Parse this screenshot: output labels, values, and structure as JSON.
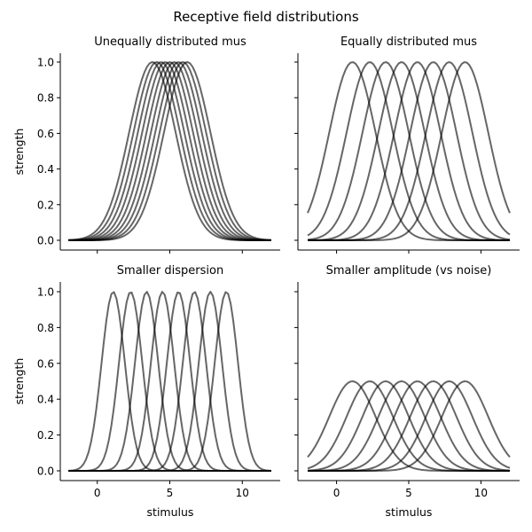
{
  "figure": {
    "title": "Receptive field distributions"
  },
  "chart_data": [
    {
      "type": "line",
      "title": "Unequally distributed mus",
      "xlabel": "",
      "ylabel": "strength",
      "xlim": [
        -2,
        12
      ],
      "ylim": [
        0,
        1
      ],
      "xticks": [
        0,
        5,
        10
      ],
      "yticks": [
        0.0,
        0.2,
        0.4,
        0.6,
        0.8,
        1.0
      ],
      "show_xticklabels": false,
      "show_yticklabels": true,
      "model": "gaussian",
      "mus": [
        3.8,
        4.1,
        4.4,
        4.7,
        5.0,
        5.3,
        5.6,
        5.9,
        6.2
      ],
      "sigma": 1.6,
      "amplitude": 1.0
    },
    {
      "type": "line",
      "title": "Equally distributed mus",
      "xlabel": "",
      "ylabel": "",
      "xlim": [
        -2,
        12
      ],
      "ylim": [
        0,
        1
      ],
      "xticks": [
        0,
        5,
        10
      ],
      "yticks": [
        0.0,
        0.2,
        0.4,
        0.6,
        0.8,
        1.0
      ],
      "show_xticklabels": false,
      "show_yticklabels": false,
      "model": "gaussian",
      "mus": [
        1.1,
        2.3,
        3.4,
        4.5,
        5.6,
        6.7,
        7.8,
        8.9
      ],
      "sigma": 1.6,
      "amplitude": 1.0
    },
    {
      "type": "line",
      "title": "Smaller dispersion",
      "xlabel": "stimulus",
      "ylabel": "strength",
      "xlim": [
        -2,
        12
      ],
      "ylim": [
        0,
        1
      ],
      "xticks": [
        0,
        5,
        10
      ],
      "yticks": [
        0.0,
        0.2,
        0.4,
        0.6,
        0.8,
        1.0
      ],
      "show_xticklabels": true,
      "show_yticklabels": true,
      "model": "gaussian",
      "mus": [
        1.1,
        2.3,
        3.4,
        4.5,
        5.6,
        6.7,
        7.8,
        8.9
      ],
      "sigma": 0.8,
      "amplitude": 1.0
    },
    {
      "type": "line",
      "title": "Smaller amplitude (vs noise)",
      "xlabel": "stimulus",
      "ylabel": "",
      "xlim": [
        -2,
        12
      ],
      "ylim": [
        0,
        1
      ],
      "xticks": [
        0,
        5,
        10
      ],
      "yticks": [
        0.0,
        0.2,
        0.4,
        0.6,
        0.8,
        1.0
      ],
      "show_xticklabels": true,
      "show_yticklabels": false,
      "model": "gaussian",
      "mus": [
        1.1,
        2.3,
        3.4,
        4.5,
        5.6,
        6.7,
        7.8,
        8.9
      ],
      "sigma": 1.6,
      "amplitude": 0.5
    }
  ]
}
